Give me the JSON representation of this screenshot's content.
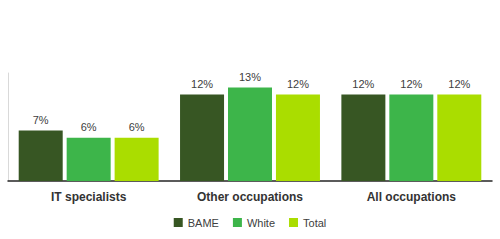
{
  "chart_data": {
    "type": "bar",
    "categories": [
      "IT specialists",
      "Other occupations",
      "All occupations"
    ],
    "series": [
      {
        "name": "BAME",
        "color": "#375623",
        "values": [
          7,
          12,
          12
        ],
        "value_labels": [
          "7%",
          "12%",
          "12%"
        ]
      },
      {
        "name": "White",
        "color": "#3db54a",
        "values": [
          6,
          13,
          12
        ],
        "value_labels": [
          "6%",
          "13%",
          "12%"
        ]
      },
      {
        "name": "Total",
        "color": "#aadd00",
        "values": [
          6,
          12,
          12
        ],
        "value_labels": [
          "6%",
          "12%",
          "12%"
        ]
      }
    ],
    "ylim": [
      0,
      15
    ],
    "grid": false,
    "legend": "bottom",
    "data_labels": true,
    "tick_labels": "x"
  }
}
